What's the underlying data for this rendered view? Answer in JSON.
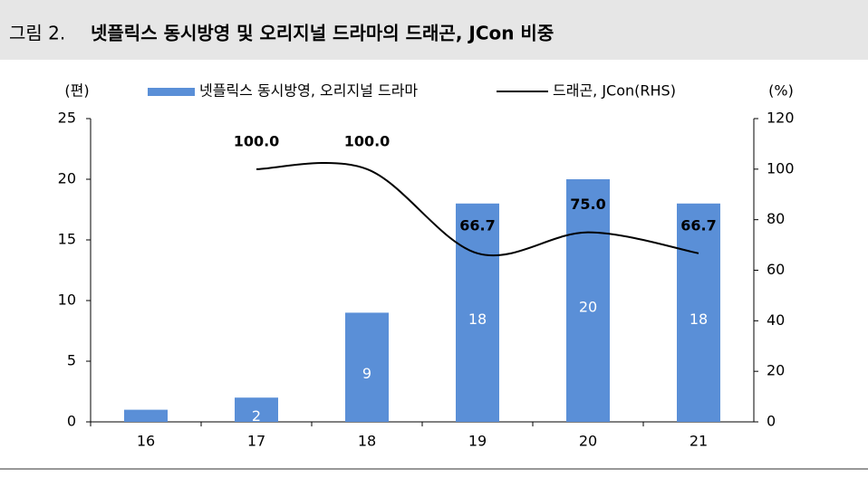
{
  "header": {
    "label": "그림 2.",
    "title": "넷플릭스 동시방영 및 오리지널 드라마의 드래곤, JCon 비중"
  },
  "chart_data": {
    "type": "bar-line",
    "y_label": "(편)",
    "y2_label": "(%)",
    "categories": [
      "16",
      "17",
      "18",
      "19",
      "20",
      "21"
    ],
    "series": [
      {
        "name": "넷플릭스 동시방영, 오리지널 드라마",
        "type": "bar",
        "color": "#5a8fd7",
        "values": [
          1,
          2,
          9,
          18,
          20,
          18
        ],
        "value_labels": [
          null,
          "2",
          "9",
          "18",
          "20",
          "18"
        ]
      },
      {
        "name": "드래곤, JCon(RHS)",
        "type": "line",
        "axis": "y2",
        "color": "#000000",
        "values": [
          null,
          100,
          100,
          66.7,
          75,
          66.7
        ],
        "value_labels": [
          null,
          "100.0",
          "100.0",
          "66.7",
          "75.0",
          "66.7"
        ]
      }
    ],
    "ylim": [
      0,
      25
    ],
    "yticks": [
      0,
      5,
      10,
      15,
      20,
      25
    ],
    "y2lim": [
      0,
      120
    ],
    "y2ticks": [
      0,
      20,
      40,
      60,
      80,
      100,
      120
    ],
    "grid": false
  }
}
